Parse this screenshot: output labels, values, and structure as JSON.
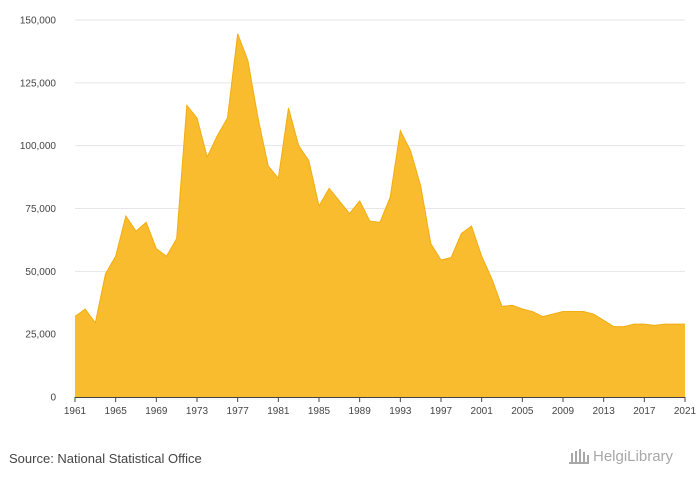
{
  "chart_data": {
    "type": "area",
    "title": "",
    "xlabel": "",
    "ylabel": "",
    "x": [
      1961,
      1962,
      1963,
      1964,
      1965,
      1966,
      1967,
      1968,
      1969,
      1970,
      1971,
      1972,
      1973,
      1974,
      1975,
      1976,
      1977,
      1978,
      1979,
      1980,
      1981,
      1982,
      1983,
      1984,
      1985,
      1986,
      1987,
      1988,
      1989,
      1990,
      1991,
      1992,
      1993,
      1994,
      1995,
      1996,
      1997,
      1998,
      1999,
      2000,
      2001,
      2002,
      2003,
      2004,
      2005,
      2006,
      2007,
      2008,
      2009,
      2010,
      2011,
      2012,
      2013,
      2014,
      2015,
      2016,
      2017,
      2018,
      2019,
      2020,
      2021
    ],
    "series": [
      {
        "values": [
          32000,
          35000,
          29500,
          49000,
          56000,
          72000,
          66000,
          69500,
          59000,
          56000,
          63000,
          116000,
          111000,
          95500,
          104000,
          111000,
          144500,
          134000,
          111000,
          92000,
          87000,
          115000,
          100000,
          94000,
          76000,
          83000,
          78000,
          73000,
          78000,
          70000,
          69500,
          79500,
          106000,
          98000,
          84000,
          61000,
          54500,
          55500,
          65000,
          68000,
          56000,
          47000,
          36000,
          36500,
          35000,
          34000,
          32000,
          33000,
          34000,
          34000,
          34000,
          33000,
          30500,
          28000,
          28000,
          29000,
          29000,
          28500,
          29000,
          29000,
          29000
        ]
      }
    ],
    "ylim": [
      0,
      150000
    ],
    "xlim": [
      1961,
      2021
    ],
    "yticks": [
      "0",
      "25,000",
      "50,000",
      "75,000",
      "100,000",
      "125,000",
      "150,000"
    ],
    "ytick_values": [
      0,
      25000,
      50000,
      75000,
      100000,
      125000,
      150000
    ],
    "xticks": [
      "1961",
      "1965",
      "1969",
      "1973",
      "1977",
      "1981",
      "1985",
      "1989",
      "1993",
      "1997",
      "2001",
      "2005",
      "2009",
      "2013",
      "2017",
      "2021"
    ],
    "xtick_values": [
      1961,
      1965,
      1969,
      1973,
      1977,
      1981,
      1985,
      1989,
      1993,
      1997,
      2001,
      2005,
      2009,
      2013,
      2017,
      2021
    ],
    "grid": true,
    "legend": "none",
    "fill_color": "#F9BC2F",
    "line_color": "#F2AD10"
  },
  "footer": {
    "source": "Source: National Statistical Office",
    "logo_text": "HelgiLibrary"
  },
  "colors": {
    "grid": "#e6e6e6",
    "axis": "#444444",
    "text": "#444444",
    "logo": "#a8a8a8"
  }
}
